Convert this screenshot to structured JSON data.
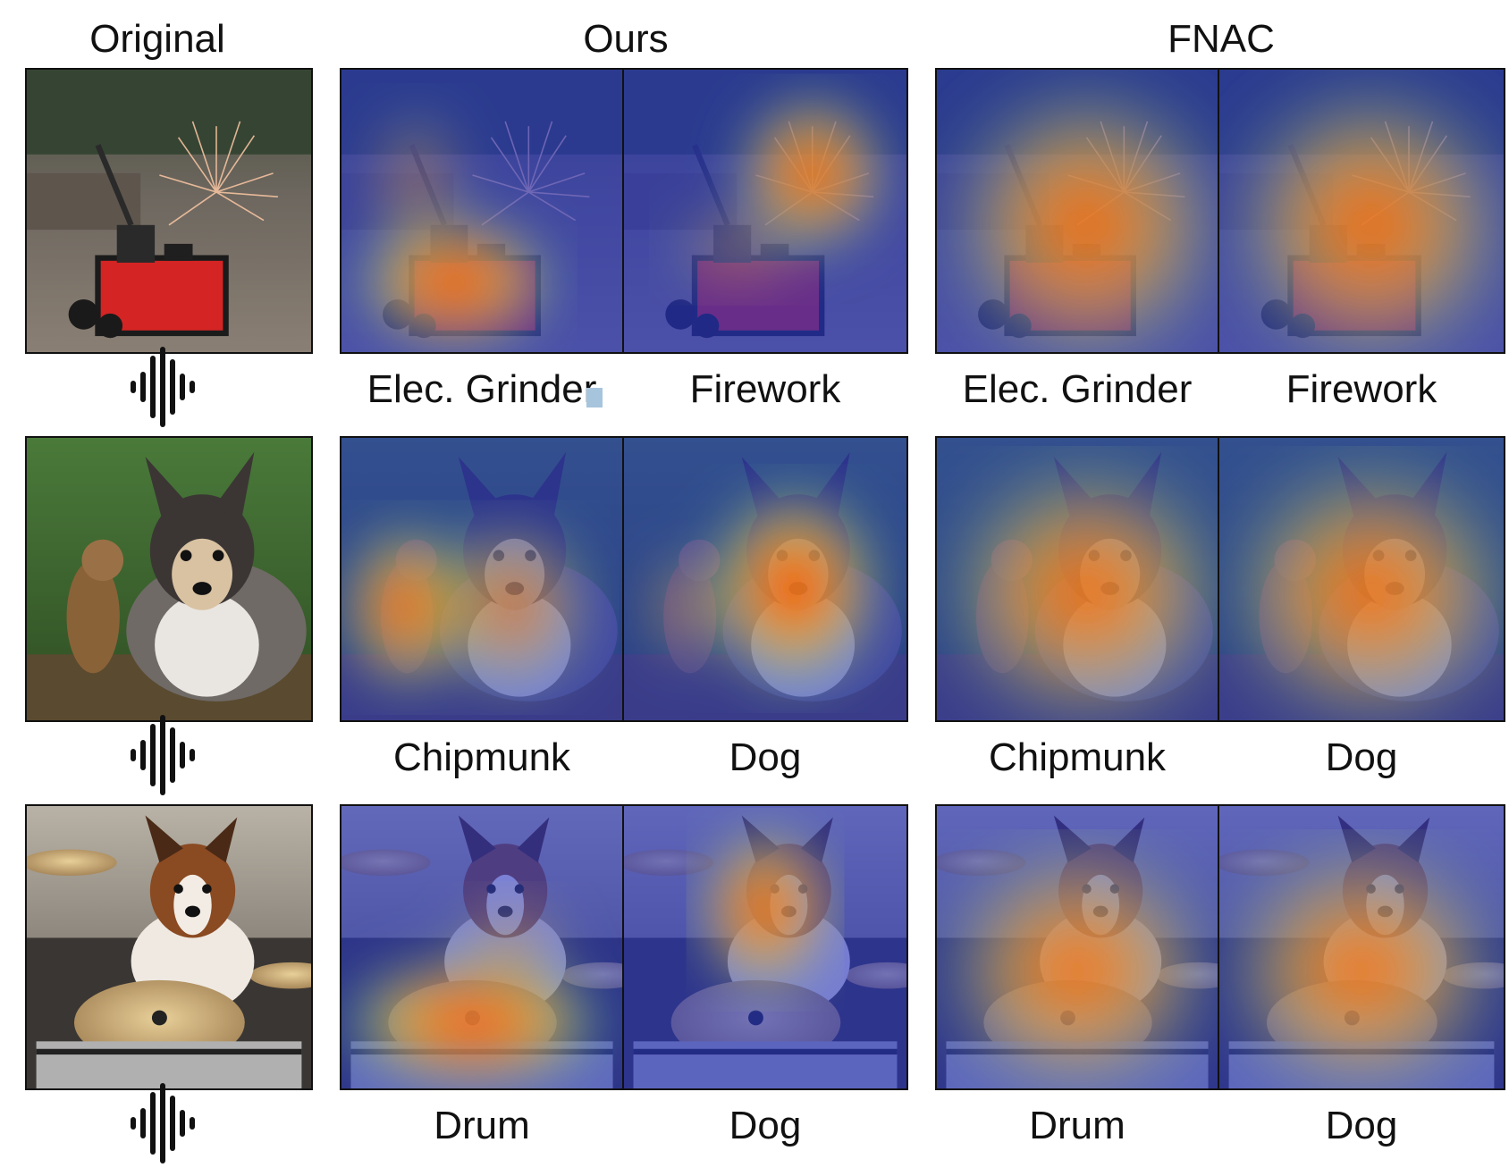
{
  "columns": {
    "original": "Original",
    "ours": "Ours",
    "fnac": "FNAC"
  },
  "rows": [
    {
      "scene": "fireworks",
      "ours_labels": [
        "Elec. Grinder",
        "Firework"
      ],
      "fnac_labels": [
        "Elec. Grinder",
        "Firework"
      ]
    },
    {
      "scene": "chipmunk-dog",
      "ours_labels": [
        "Chipmunk",
        "Dog"
      ],
      "fnac_labels": [
        "Chipmunk",
        "Dog"
      ]
    },
    {
      "scene": "drummer-dog",
      "ours_labels": [
        "Drum",
        "Dog"
      ],
      "fnac_labels": [
        "Drum",
        "Dog"
      ]
    }
  ],
  "icons": {
    "audio": "audio-waveform-icon"
  }
}
